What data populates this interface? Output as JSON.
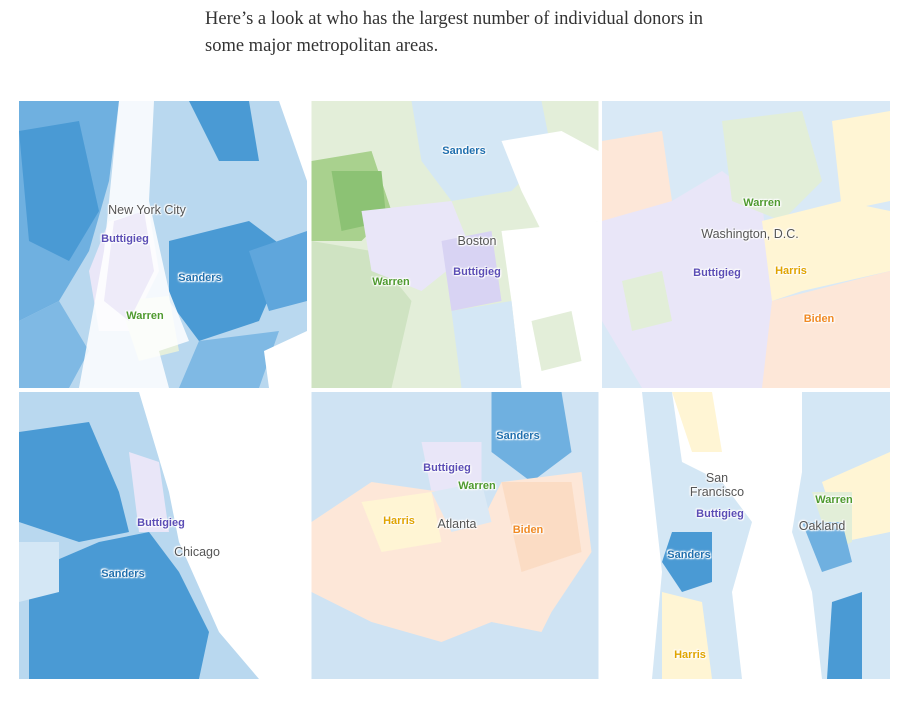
{
  "intro_text": "Here’s a look at who has the largest number of individual donors in some major metropolitan areas.",
  "colors": {
    "sanders": "#4a9ad4",
    "sanders_light": "#d4e7f5",
    "warren": "#5a9e3a",
    "warren_light": "#e2eed8",
    "buttigieg": "#6a5cc0",
    "buttigieg_light": "#e9e6f8",
    "harris": "#e8a800",
    "harris_light": "#fff5d4",
    "biden": "#f0902a",
    "biden_light": "#fde7d8"
  },
  "maps": [
    {
      "city": "New York City",
      "labels": {
        "buttigieg": "Buttigieg",
        "sanders": "Sanders",
        "warren": "Warren"
      }
    },
    {
      "city": "Boston",
      "labels": {
        "sanders": "Sanders",
        "warren": "Warren",
        "buttigieg": "Buttigieg"
      }
    },
    {
      "city": "Washington, D.C.",
      "labels": {
        "warren": "Warren",
        "buttigieg": "Buttigieg",
        "harris": "Harris",
        "biden": "Biden"
      }
    },
    {
      "city": "Chicago",
      "labels": {
        "buttigieg": "Buttigieg",
        "sanders": "Sanders"
      }
    },
    {
      "city": "Atlanta",
      "labels": {
        "sanders": "Sanders",
        "buttigieg": "Buttigieg",
        "warren": "Warren",
        "harris": "Harris",
        "biden": "Biden"
      }
    },
    {
      "city_line1": "San",
      "city_line2": "Francisco",
      "city2": "Oakland",
      "labels": {
        "warren": "Warren",
        "buttigieg": "Buttigieg",
        "sanders": "Sanders",
        "harris": "Harris"
      }
    }
  ]
}
